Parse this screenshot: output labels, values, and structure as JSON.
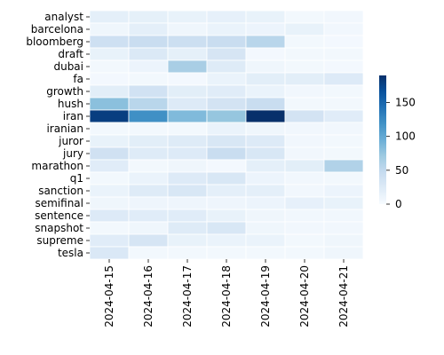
{
  "chart_data": {
    "type": "heatmap",
    "title": "",
    "xlabel": "",
    "ylabel": "",
    "x": [
      "2024-04-15",
      "2024-04-16",
      "2024-04-17",
      "2024-04-18",
      "2024-04-19",
      "2024-04-20",
      "2024-04-21"
    ],
    "y": [
      "analyst",
      "barcelona",
      "bloomberg",
      "draft",
      "dubai",
      "fa",
      "growth",
      "hush",
      "iran",
      "iranian",
      "juror",
      "jury",
      "marathon",
      "q1",
      "sanction",
      "semifinal",
      "sentence",
      "snapshot",
      "supreme",
      "tesla"
    ],
    "values": [
      [
        18,
        17,
        14,
        16,
        14,
        5,
        6
      ],
      [
        8,
        18,
        8,
        12,
        10,
        14,
        6
      ],
      [
        40,
        45,
        42,
        45,
        55,
        5,
        4
      ],
      [
        14,
        27,
        17,
        32,
        4,
        5,
        5
      ],
      [
        5,
        10,
        65,
        24,
        8,
        5,
        4
      ],
      [
        4,
        5,
        4,
        12,
        20,
        20,
        25
      ],
      [
        20,
        37,
        20,
        22,
        12,
        6,
        5
      ],
      [
        80,
        55,
        25,
        35,
        45,
        5,
        5
      ],
      [
        180,
        120,
        85,
        75,
        190,
        35,
        22
      ],
      [
        5,
        5,
        5,
        12,
        8,
        6,
        6
      ],
      [
        14,
        20,
        24,
        30,
        25,
        6,
        5
      ],
      [
        38,
        24,
        25,
        45,
        30,
        6,
        5
      ],
      [
        22,
        5,
        8,
        4,
        18,
        20,
        60
      ],
      [
        5,
        12,
        25,
        30,
        10,
        6,
        5
      ],
      [
        12,
        24,
        30,
        18,
        18,
        6,
        10
      ],
      [
        8,
        9,
        9,
        9,
        10,
        16,
        14
      ],
      [
        25,
        22,
        22,
        14,
        8,
        6,
        6
      ],
      [
        5,
        8,
        24,
        30,
        8,
        6,
        6
      ],
      [
        22,
        32,
        14,
        12,
        12,
        5,
        8
      ],
      [
        28,
        5,
        5,
        5,
        5,
        5,
        8
      ]
    ],
    "colorscale": {
      "name": "Blues",
      "min": 0,
      "max": 190,
      "ticks": [
        0,
        50,
        100,
        150
      ],
      "stops": [
        "#f7fbff",
        "#deebf7",
        "#c6dbef",
        "#9ecae1",
        "#6baed6",
        "#4292c6",
        "#2171b5",
        "#08519c",
        "#08306b"
      ]
    },
    "gridlines": false,
    "cell_border_color": "#ffffff",
    "legend": "right colorbar"
  }
}
